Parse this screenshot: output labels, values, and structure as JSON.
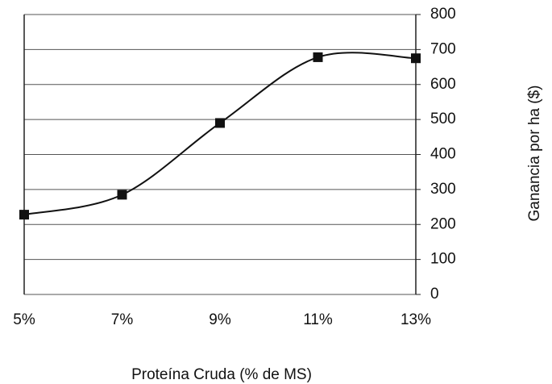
{
  "chart_data": {
    "type": "line",
    "smooth": true,
    "categories": [
      "5%",
      "7%",
      "9%",
      "11%",
      "13%"
    ],
    "series": [
      {
        "name": "Ganancia",
        "color": "#111111",
        "values": [
          228,
          285,
          490,
          678,
          675
        ]
      }
    ],
    "xlabel": "Proteína Cruda (% de MS)",
    "ylabel": "Ganancia por ha ($)",
    "ylim": [
      0,
      800
    ],
    "yticks": [
      0,
      100,
      200,
      300,
      400,
      500,
      600,
      700,
      800
    ],
    "grid": true
  }
}
